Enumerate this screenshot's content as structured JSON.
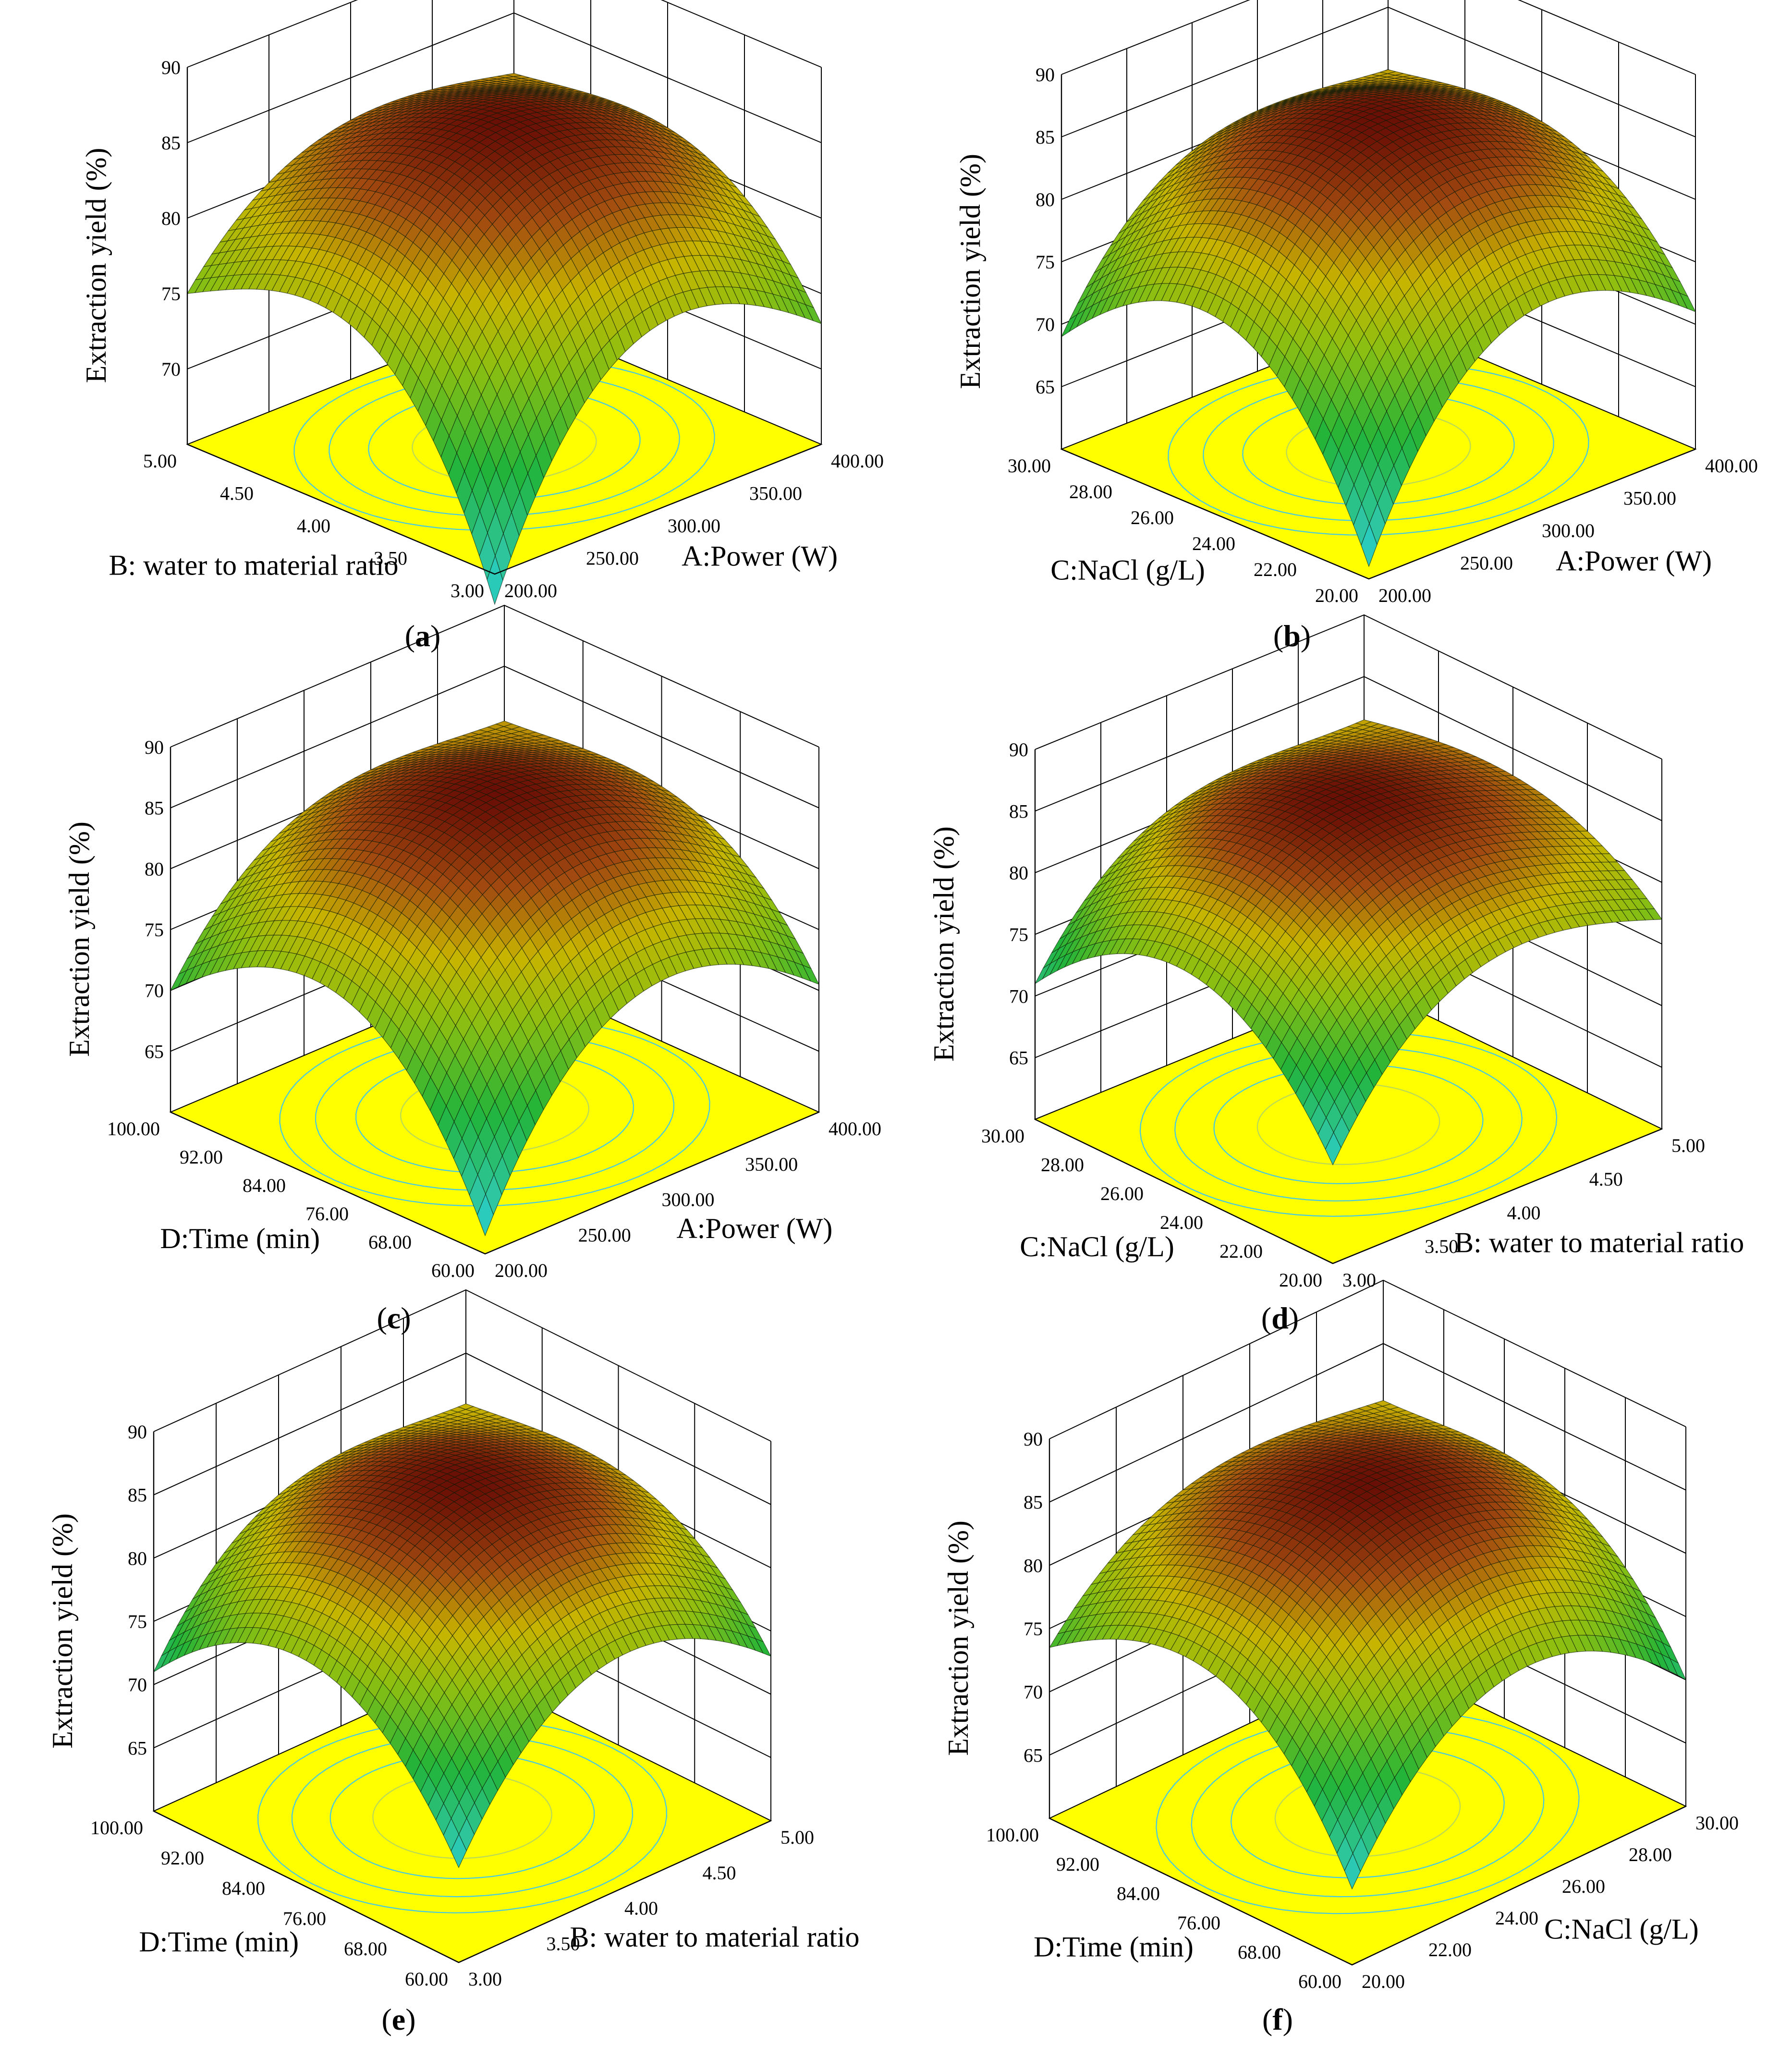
{
  "chart_data": [
    {
      "type": "surface",
      "label": "a",
      "zlabel": "Extraction yield (%)",
      "zticks": [
        "70",
        "75",
        "80",
        "85",
        "90"
      ],
      "zlim": [
        65,
        90
      ],
      "x": {
        "title": "A:Power (W)",
        "ticks": [
          "200.00",
          "250.00",
          "300.00",
          "350.00",
          "400.00"
        ],
        "range": [
          200,
          400
        ]
      },
      "y": {
        "title": "B: water to material ratio",
        "ticks": [
          "3.00",
          "3.50",
          "4.00",
          "4.50",
          "5.00"
        ],
        "range": [
          3,
          5
        ]
      },
      "surface": {
        "max": 86.4,
        "back": 81.0,
        "left": 75.0,
        "right": 73.0,
        "front": 63.0
      }
    },
    {
      "type": "surface",
      "label": "b",
      "zlabel": "Extraction yield (%)",
      "zticks": [
        "65",
        "70",
        "75",
        "80",
        "85",
        "90"
      ],
      "zlim": [
        60,
        90
      ],
      "x": {
        "title": "A:Power (W)",
        "ticks": [
          "200.00",
          "250.00",
          "300.00",
          "350.00",
          "400.00"
        ],
        "range": [
          200,
          400
        ]
      },
      "y": {
        "title": "C:NaCl (g/L)",
        "ticks": [
          "20.00",
          "22.00",
          "24.00",
          "26.00",
          "28.00",
          "30.00"
        ],
        "range": [
          20,
          30
        ]
      },
      "surface": {
        "max": 86.6,
        "back": 80.0,
        "left": 69.0,
        "right": 71.0,
        "front": 61.0
      }
    },
    {
      "type": "surface",
      "label": "c",
      "zlabel": "Extraction yield (%)",
      "zticks": [
        "65",
        "70",
        "75",
        "80",
        "85",
        "90"
      ],
      "zlim": [
        60,
        90
      ],
      "x": {
        "title": "A:Power (W)",
        "ticks": [
          "200.00",
          "250.00",
          "300.00",
          "350.00",
          "400.00"
        ],
        "range": [
          200,
          400
        ]
      },
      "y": {
        "title": "D:Time (min)",
        "ticks": [
          "60.00",
          "68.00",
          "76.00",
          "84.00",
          "92.00",
          "100.00"
        ],
        "range": [
          60,
          100
        ]
      },
      "surface": {
        "max": 86.4,
        "back": 80.5,
        "left": 70.0,
        "right": 70.5,
        "front": 61.5
      }
    },
    {
      "type": "surface",
      "label": "d",
      "zlabel": "Extraction yield (%)",
      "zticks": [
        "65",
        "70",
        "75",
        "80",
        "85",
        "90"
      ],
      "zlim": [
        60,
        90
      ],
      "x": {
        "title": "B: water to material ratio",
        "ticks": [
          "3.00",
          "3.50",
          "4.00",
          "4.50",
          "5.00"
        ],
        "range": [
          3,
          5
        ]
      },
      "y": {
        "title": "C:NaCl (g/L)",
        "ticks": [
          "20.00",
          "22.00",
          "24.00",
          "26.00",
          "28.00",
          "30.00"
        ],
        "range": [
          20,
          30
        ]
      },
      "surface": {
        "max": 86.4,
        "back": 81.5,
        "left": 71.0,
        "right": 77.0,
        "front": 68.0
      }
    },
    {
      "type": "surface",
      "label": "e",
      "zlabel": "Extraction yield (%)",
      "zticks": [
        "65",
        "70",
        "75",
        "80",
        "85",
        "90"
      ],
      "zlim": [
        60,
        90
      ],
      "x": {
        "title": "B: water to material ratio",
        "ticks": [
          "3.00",
          "3.50",
          "4.00",
          "4.50",
          "5.00"
        ],
        "range": [
          3,
          5
        ]
      },
      "y": {
        "title": "D:Time (min)",
        "ticks": [
          "60.00",
          "68.00",
          "76.00",
          "84.00",
          "92.00",
          "100.00"
        ],
        "range": [
          60,
          100
        ]
      },
      "surface": {
        "max": 86.5,
        "back": 81.0,
        "left": 71.0,
        "right": 73.0,
        "front": 67.5
      }
    },
    {
      "type": "surface",
      "label": "f",
      "zlabel": "Extraction yield (%)",
      "zticks": [
        "65",
        "70",
        "75",
        "80",
        "85",
        "90"
      ],
      "zlim": [
        60,
        90
      ],
      "x": {
        "title": "C:NaCl (g/L)",
        "ticks": [
          "20.00",
          "22.00",
          "24.00",
          "26.00",
          "28.00",
          "30.00"
        ],
        "range": [
          20,
          30
        ]
      },
      "y": {
        "title": "D:Time (min)",
        "ticks": [
          "60.00",
          "68.00",
          "76.00",
          "84.00",
          "92.00",
          "100.00"
        ],
        "range": [
          60,
          100
        ]
      },
      "surface": {
        "max": 86.0,
        "back": 80.5,
        "left": 73.5,
        "right": 70.0,
        "front": 66.0
      }
    }
  ],
  "colors": {
    "floor": "#ffff00",
    "contour_outer": "#41c8e6",
    "contour_inner": "#b8d85a",
    "surface_low": "#1fd6ff",
    "surface_mid": "#22b43a",
    "surface_high_mid": "#c8b400",
    "surface_peak": "#6a0f05"
  }
}
